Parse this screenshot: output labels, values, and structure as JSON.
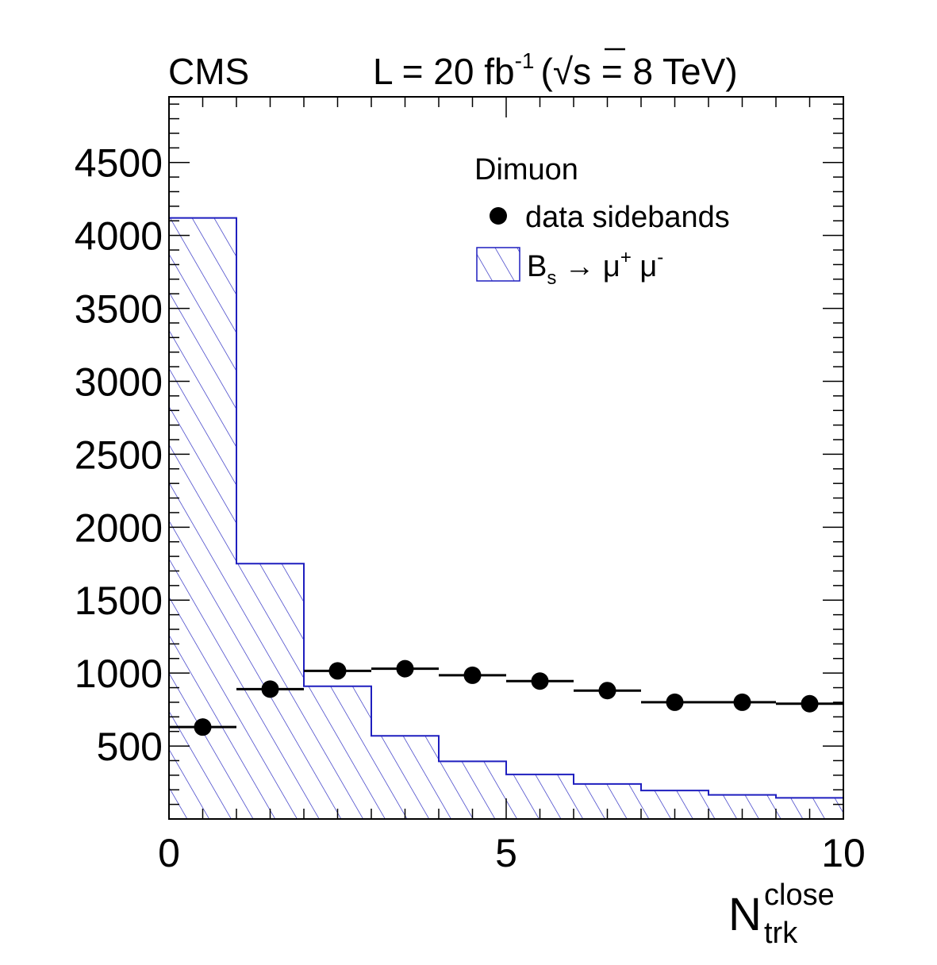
{
  "chart_data": {
    "type": "bar",
    "experiment_label": "CMS",
    "lumi_label": {
      "prefix": "L = 20 fb",
      "exponent": "-1",
      "open": "(",
      "sqrt": "√",
      "energy": "s = 8 TeV)"
    },
    "xlabel": {
      "main": "N",
      "superscript": "close",
      "subscript": "trk"
    },
    "ylabel": "",
    "xlim": [
      0,
      10
    ],
    "ylim": [
      0,
      4950
    ],
    "x_ticks": [
      0,
      5,
      10
    ],
    "x_tick_labels": [
      "0",
      "5",
      "10"
    ],
    "y_ticks": [
      500,
      1000,
      1500,
      2000,
      2500,
      3000,
      3500,
      4000,
      4500
    ],
    "y_tick_labels": [
      "500",
      "1000",
      "1500",
      "2000",
      "2500",
      "3000",
      "3500",
      "4000",
      "4500"
    ],
    "bin_edges": [
      0,
      1,
      2,
      3,
      4,
      5,
      6,
      7,
      8,
      9,
      10
    ],
    "series": [
      {
        "name": "Bs → μ+ μ-",
        "style": "hatched-histogram",
        "color": "#1f1fbf",
        "values": [
          4120,
          1750,
          910,
          570,
          395,
          305,
          240,
          195,
          165,
          145
        ]
      },
      {
        "name": "data sidebands",
        "style": "markers",
        "color": "#000000",
        "values": [
          630,
          890,
          1015,
          1030,
          985,
          945,
          880,
          800,
          800,
          790
        ]
      }
    ],
    "legend": {
      "position": "top-right",
      "title": "Dimuon",
      "entries": {
        "data": "data sidebands",
        "mc_b": "B",
        "mc_sub": "s",
        "mc_arrow": "→ μ",
        "mc_sup1": "+",
        "mc_mid": " μ",
        "mc_sup2": "-"
      }
    }
  }
}
